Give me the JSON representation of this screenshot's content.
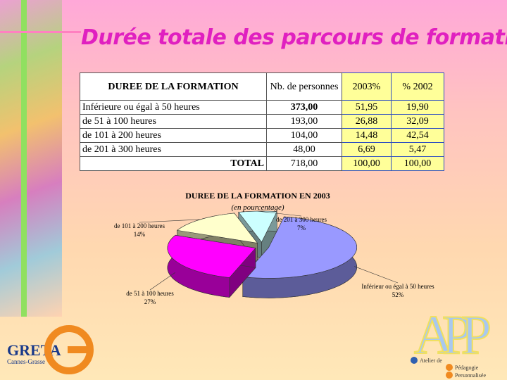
{
  "title": "Durée totale des parcours de formation",
  "table": {
    "header": [
      "DUREE DE LA FORMATION",
      "Nb. de personnes",
      "2003%",
      "% 2002"
    ],
    "rows": [
      [
        "Inférieure ou égal à 50 heures",
        "373,00",
        "51,95",
        "19,90"
      ],
      [
        "de 51 à 100 heures",
        "193,00",
        "26,88",
        "32,09"
      ],
      [
        "de 101 à 200 heures",
        "104,00",
        "14,48",
        "42,54"
      ],
      [
        "de 201 à 300 heures",
        "48,00",
        "6,69",
        "5,47"
      ],
      [
        "TOTAL",
        "718,00",
        "100,00",
        "100,00"
      ]
    ]
  },
  "chart_data": {
    "type": "pie3d",
    "title": "DUREE DE LA FORMATION EN 2003",
    "subtitle": "(en pourcentage)",
    "categories": [
      "Inférieur ou égal à 50 heures",
      "de 51 à 100 heures",
      "de 101 à 200 heures",
      "de 201 à 300 heures"
    ],
    "values": [
      52,
      27,
      14,
      7
    ],
    "value_labels": [
      "52%",
      "27%",
      "14%",
      "7%"
    ],
    "colors": [
      "#9999ff",
      "#ff00ff",
      "#ffffcc",
      "#ccffff"
    ]
  },
  "logo_greta": {
    "name": "GRETA",
    "place": "Cannes-Grasse"
  },
  "logo_app": {
    "letters": "APP",
    "line1": "Atelier de",
    "line2": "Pédagogie",
    "line3": "Personnalisée"
  }
}
